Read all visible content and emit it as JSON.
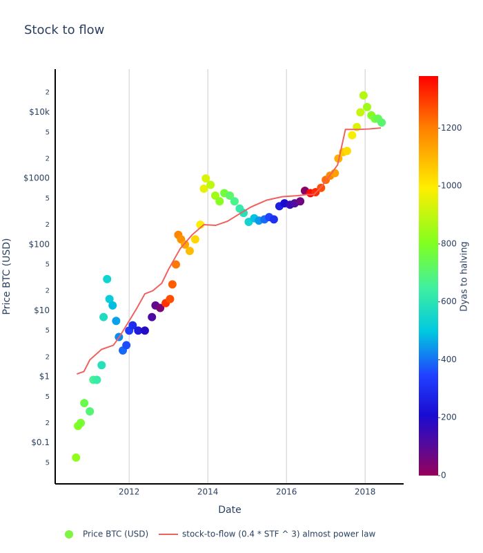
{
  "chart_data": {
    "type": "scatter",
    "title": "Stock to flow",
    "x_label": "Date",
    "y_label": "Price BTC (USD)",
    "xlim": [
      2010.12,
      2018.98
    ],
    "xticks": [
      2012,
      2014,
      2016,
      2018
    ],
    "xgrid": true,
    "ylog": true,
    "ylim": [
      0.024,
      45000
    ],
    "yticks": [
      {
        "value": 0.05,
        "label": "5"
      },
      {
        "value": 0.1,
        "label": "$0.1"
      },
      {
        "value": 0.2,
        "label": "2"
      },
      {
        "value": 0.5,
        "label": "5"
      },
      {
        "value": 1,
        "label": "$1"
      },
      2,
      5,
      {
        "value": 10,
        "label": "$10"
      },
      {
        "value": 20,
        "label": "2"
      },
      {
        "value": 50,
        "label": "5"
      },
      {
        "value": 100,
        "label": "$100"
      },
      {
        "value": 200,
        "label": "2"
      },
      {
        "value": 500,
        "label": "5"
      },
      {
        "value": 1000,
        "label": "$1000"
      },
      {
        "value": 2000,
        "label": "2"
      },
      {
        "value": 5000,
        "label": "5"
      },
      {
        "value": 10000,
        "label": "$10k"
      },
      {
        "value": 20000,
        "label": "2"
      }
    ],
    "colorbar": {
      "title": "Dyas to halving",
      "clim": [
        0,
        1380
      ],
      "ticks": [
        0,
        200,
        400,
        600,
        800,
        1000,
        1200
      ],
      "colorscale": [
        [
          0,
          "#96005a"
        ],
        [
          0.07,
          "#5a0a96"
        ],
        [
          0.15,
          "#1a0bd0"
        ],
        [
          0.25,
          "#2040ff"
        ],
        [
          0.36,
          "#00c8e0"
        ],
        [
          0.47,
          "#40f0a0"
        ],
        [
          0.58,
          "#80ff20"
        ],
        [
          0.72,
          "#ffee00"
        ],
        [
          0.87,
          "#ff8000"
        ],
        [
          1,
          "#ff0000"
        ]
      ]
    },
    "series": [
      {
        "name": "Price BTC (USD)",
        "mode": "markers",
        "color": "#7ef542",
        "x": [
          2010.65,
          2010.7,
          2010.77,
          2010.86,
          2011.0,
          2011.09,
          2011.18,
          2011.3,
          2011.35,
          2011.44,
          2011.5,
          2011.58,
          2011.67,
          2011.74,
          2011.84,
          2011.93,
          2012.0,
          2012.09,
          2012.23,
          2012.4,
          2012.58,
          2012.67,
          2012.79,
          2012.93,
          2013.04,
          2013.1,
          2013.19,
          2013.25,
          2013.32,
          2013.42,
          2013.54,
          2013.68,
          2013.81,
          2013.9,
          2013.95,
          2014.07,
          2014.19,
          2014.3,
          2014.42,
          2014.56,
          2014.68,
          2014.81,
          2014.91,
          2015.04,
          2015.18,
          2015.3,
          2015.44,
          2015.56,
          2015.68,
          2015.82,
          2015.95,
          2016.09,
          2016.21,
          2016.35,
          2016.47,
          2016.61,
          2016.74,
          2016.88,
          2017.0,
          2017.11,
          2017.23,
          2017.32,
          2017.44,
          2017.54,
          2017.67,
          2017.79,
          2017.88,
          2017.96,
          2018.05,
          2018.16,
          2018.25,
          2018.33,
          2018.42
        ],
        "values": [
          0.06,
          0.18,
          0.2,
          0.4,
          0.3,
          0.9,
          0.9,
          1.5,
          8,
          30,
          15,
          12,
          7,
          4,
          2.5,
          3,
          5,
          6,
          5,
          5,
          8,
          12,
          11,
          13,
          15,
          25,
          50,
          140,
          120,
          100,
          80,
          120,
          200,
          700,
          1000,
          800,
          550,
          450,
          600,
          550,
          450,
          350,
          300,
          220,
          250,
          230,
          240,
          260,
          240,
          380,
          420,
          400,
          420,
          450,
          650,
          600,
          620,
          720,
          950,
          1100,
          1200,
          2000,
          2500,
          2600,
          4500,
          6000,
          10000,
          18000,
          12000,
          9000,
          8000,
          8000,
          7000
        ],
        "color_values": [
          825,
          807,
          781,
          748,
          697,
          664,
          631,
          588,
          569,
          537,
          515,
          485,
          453,
          427,
          391,
          358,
          332,
          299,
          248,
          186,
          120,
          88,
          44,
          1310,
          1270,
          1248,
          1215,
          1194,
          1168,
          1132,
          1088,
          1037,
          989,
          956,
          938,
          894,
          850,
          810,
          767,
          715,
          672,
          624,
          588,
          540,
          489,
          445,
          394,
          350,
          307,
          256,
          208,
          157,
          113,
          62,
          18,
          1369,
          1321,
          1270,
          1226,
          1186,
          1142,
          1110,
          1066,
          1029,
          982,
          938,
          905,
          876,
          843,
          803,
          770,
          741,
          708
        ]
      },
      {
        "name": "stock-to-flow (0.4 * STF ^ 3) almost power law",
        "mode": "lines",
        "color": "#f0605f",
        "x": [
          2010.67,
          2010.85,
          2011.0,
          2011.3,
          2011.6,
          2011.75,
          2012.0,
          2012.2,
          2012.4,
          2012.6,
          2012.83,
          2013.0,
          2013.3,
          2013.6,
          2013.9,
          2014.2,
          2014.5,
          2014.8,
          2015.1,
          2015.5,
          2015.9,
          2016.3,
          2016.5,
          2016.7,
          2016.9,
          2017.1,
          2017.3,
          2017.5,
          2017.8,
          2018.1,
          2018.4
        ],
        "values": [
          1.1,
          1.2,
          1.8,
          2.6,
          3,
          4,
          7,
          11,
          18,
          20,
          26,
          42,
          87,
          140,
          200,
          195,
          225,
          290,
          370,
          470,
          530,
          550,
          570,
          570,
          760,
          1100,
          1600,
          5500,
          5500,
          5600,
          5800
        ]
      }
    ]
  }
}
